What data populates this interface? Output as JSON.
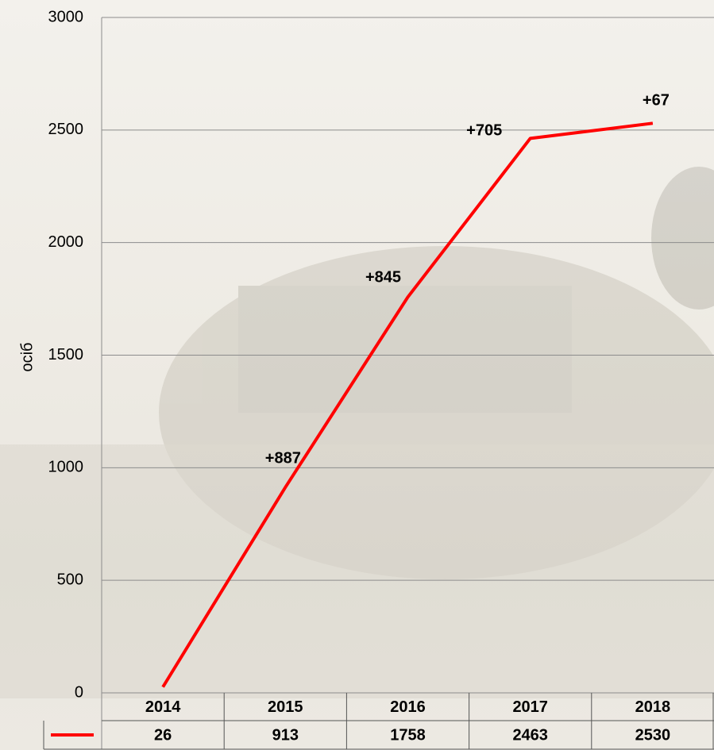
{
  "chart_data": {
    "type": "line",
    "y_label": "осіб",
    "categories": [
      "2014",
      "2015",
      "2016",
      "2017",
      "2018"
    ],
    "values": [
      26,
      913,
      1758,
      2463,
      2530
    ],
    "color": "#ff0000",
    "ylim": [
      0,
      3000
    ],
    "yticks": [
      0,
      500,
      1000,
      1500,
      2000,
      2500,
      3000
    ],
    "grid": true,
    "annotations": [
      "+887",
      "+845",
      "+705",
      "+67"
    ]
  }
}
